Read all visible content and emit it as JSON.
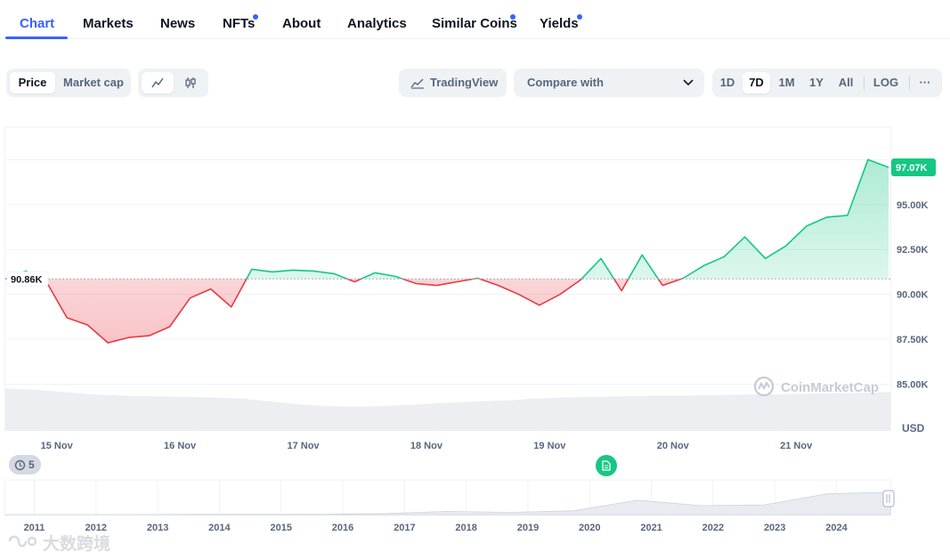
{
  "nav": {
    "tabs": [
      {
        "label": "Chart",
        "active": true,
        "dot": false
      },
      {
        "label": "Markets",
        "active": false,
        "dot": false
      },
      {
        "label": "News",
        "active": false,
        "dot": false
      },
      {
        "label": "NFTs",
        "active": false,
        "dot": true
      },
      {
        "label": "About",
        "active": false,
        "dot": false
      },
      {
        "label": "Analytics",
        "active": false,
        "dot": false
      },
      {
        "label": "Similar Coins",
        "active": false,
        "dot": true
      },
      {
        "label": "Yields",
        "active": false,
        "dot": true
      }
    ]
  },
  "toolbar": {
    "metric": {
      "price": "Price",
      "market_cap": "Market cap",
      "selected": "Price"
    },
    "chart_style": {
      "line_icon": "line-chart-icon",
      "candle_icon": "candlestick-icon",
      "selected": "line"
    },
    "tradingview_label": "TradingView",
    "compare_label": "Compare with",
    "ranges": [
      "1D",
      "7D",
      "1M",
      "1Y",
      "All"
    ],
    "selected_range": "7D",
    "log_label": "LOG",
    "more_label": "···"
  },
  "chart_data": {
    "type": "line",
    "x_tick_labels": [
      "15 Nov",
      "16 Nov",
      "17 Nov",
      "18 Nov",
      "19 Nov",
      "20 Nov",
      "21 Nov"
    ],
    "y_tick_labels": [
      "85.00K",
      "87.50K",
      "90.00K",
      "92.50K",
      "95.00K"
    ],
    "y_ticks": [
      85000,
      87500,
      90000,
      92500,
      95000
    ],
    "ylim": [
      82400,
      99300
    ],
    "currency_label": "USD",
    "baseline": {
      "value": 90860,
      "label": "90.86K"
    },
    "current": {
      "value": 97070,
      "label": "97.07K"
    },
    "colors": {
      "above": "#16c784",
      "below": "#ea3943",
      "badge": "#16c784"
    },
    "x": [
      "2024-11-14 14:00",
      "2024-11-14 18:00",
      "2024-11-14 22:00",
      "2024-11-15 02:00",
      "2024-11-15 06:00",
      "2024-11-15 10:00",
      "2024-11-15 14:00",
      "2024-11-15 18:00",
      "2024-11-15 22:00",
      "2024-11-16 02:00",
      "2024-11-16 06:00",
      "2024-11-16 10:00",
      "2024-11-16 14:00",
      "2024-11-16 18:00",
      "2024-11-16 22:00",
      "2024-11-17 02:00",
      "2024-11-17 06:00",
      "2024-11-17 10:00",
      "2024-11-17 14:00",
      "2024-11-17 18:00",
      "2024-11-17 22:00",
      "2024-11-18 02:00",
      "2024-11-18 06:00",
      "2024-11-18 10:00",
      "2024-11-18 14:00",
      "2024-11-18 18:00",
      "2024-11-18 22:00",
      "2024-11-19 02:00",
      "2024-11-19 06:00",
      "2024-11-19 10:00",
      "2024-11-19 14:00",
      "2024-11-19 18:00",
      "2024-11-19 22:00",
      "2024-11-20 02:00",
      "2024-11-20 06:00",
      "2024-11-20 10:00",
      "2024-11-20 14:00",
      "2024-11-20 18:00",
      "2024-11-20 22:00",
      "2024-11-21 02:00",
      "2024-11-21 06:00",
      "2024-11-21 10:00",
      "2024-11-21 14:00",
      "2024-11-21 18:00"
    ],
    "values": [
      90850,
      91300,
      90700,
      88700,
      88300,
      87300,
      87600,
      87700,
      88200,
      89800,
      90300,
      89300,
      91400,
      91250,
      91350,
      91300,
      91150,
      90700,
      91200,
      91000,
      90600,
      90500,
      90700,
      90900,
      90500,
      90000,
      89400,
      90000,
      90800,
      92000,
      90200,
      92200,
      90500,
      90900,
      91600,
      92100,
      93200,
      92000,
      92700,
      93800,
      94300,
      94400,
      97500,
      97070
    ],
    "volume_values": [
      0.72,
      0.7,
      0.66,
      0.62,
      0.6,
      0.59,
      0.58,
      0.57,
      0.55,
      0.5,
      0.45,
      0.42,
      0.41,
      0.43,
      0.45,
      0.48,
      0.5,
      0.52,
      0.55,
      0.57,
      0.58,
      0.59,
      0.6,
      0.6,
      0.61,
      0.62,
      0.62,
      0.63,
      0.64,
      0.65,
      0.66
    ],
    "history_years": [
      "2011",
      "2012",
      "2013",
      "2014",
      "2015",
      "2016",
      "2017",
      "2018",
      "2019",
      "2020",
      "2021",
      "2022",
      "2023",
      "2024"
    ],
    "history_values": [
      0.0,
      0.0,
      0.0,
      0.01,
      0.01,
      0.01,
      0.03,
      0.1,
      0.07,
      0.12,
      0.45,
      0.28,
      0.3,
      0.65,
      0.7
    ]
  },
  "watermark_label": "CoinMarketCap",
  "history_badge": {
    "label": "5",
    "icon": "history-icon"
  },
  "news_pin_icon": "document-icon",
  "brandmark_label": "大数跨境"
}
